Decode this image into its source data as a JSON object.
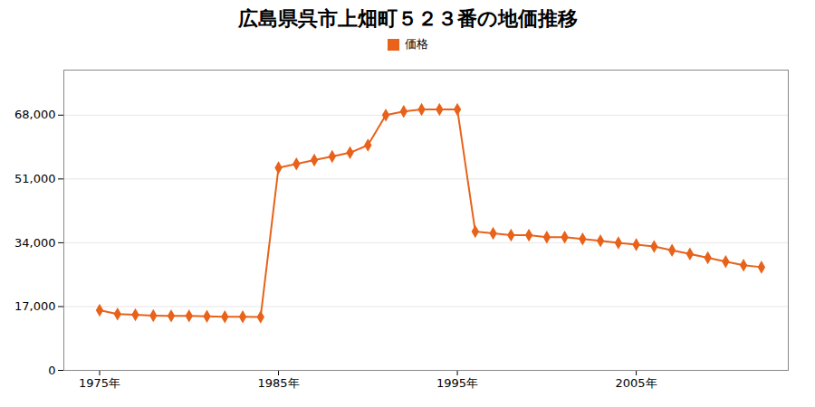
{
  "chart_data": {
    "type": "line",
    "title": "広島県呉市上畑町５２３番の地価推移",
    "x": [
      1975,
      1976,
      1977,
      1978,
      1979,
      1980,
      1981,
      1982,
      1983,
      1984,
      1985,
      1986,
      1987,
      1988,
      1989,
      1990,
      1991,
      1992,
      1993,
      1994,
      1995,
      1996,
      1997,
      1998,
      1999,
      2000,
      2001,
      2002,
      2003,
      2004,
      2005,
      2006,
      2007,
      2008,
      2009,
      2010,
      2011,
      2012
    ],
    "series": [
      {
        "name": "価格",
        "color": "#E8621A",
        "marker": "diamond",
        "values": [
          16000,
          15000,
          14800,
          14600,
          14500,
          14500,
          14400,
          14300,
          14300,
          14200,
          54000,
          55000,
          56000,
          57000,
          58000,
          60000,
          68000,
          69000,
          69500,
          69500,
          69500,
          37000,
          36500,
          36000,
          36000,
          35500,
          35500,
          35000,
          34500,
          34000,
          33500,
          33000,
          32000,
          31000,
          30000,
          29000,
          28000,
          27500
        ]
      }
    ],
    "xlim": [
      1973,
      2013.5
    ],
    "xticks": [
      {
        "value": 1975,
        "label": "1975年"
      },
      {
        "value": 1985,
        "label": "1985年"
      },
      {
        "value": 1995,
        "label": "1995年"
      },
      {
        "value": 2005,
        "label": "2005年"
      }
    ],
    "ylim": [
      0,
      80000
    ],
    "yticks": [
      0,
      {
        "value": 17000,
        "label": "17,000"
      },
      {
        "value": 34000,
        "label": "34,000"
      },
      {
        "value": 51000,
        "label": "51,000"
      },
      {
        "value": 68000,
        "label": "68,000"
      }
    ],
    "grid": "y",
    "legend": "top"
  }
}
